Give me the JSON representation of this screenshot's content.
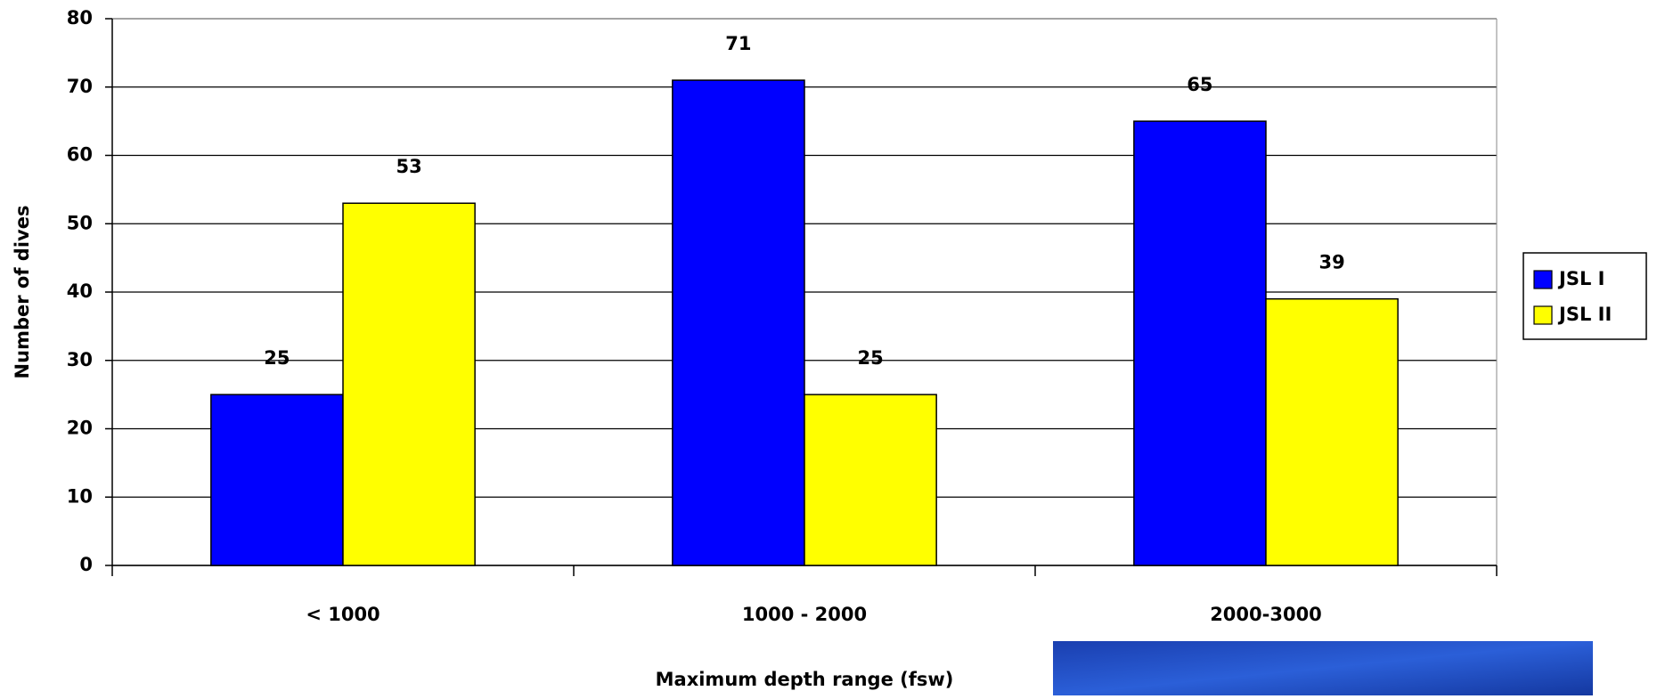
{
  "chart_data": {
    "type": "bar",
    "x_label": "Maximum depth range (fsw)",
    "y_label": "Number of dives",
    "categories": [
      "< 1000",
      "1000 - 2000",
      "2000-3000"
    ],
    "series": [
      {
        "name": "JSL I",
        "color": "#0000ff",
        "values": [
          25,
          71,
          65
        ]
      },
      {
        "name": "JSL II",
        "color": "#ffff00",
        "values": [
          53,
          25,
          39
        ]
      }
    ],
    "ylim": [
      0,
      80
    ],
    "yticks": [
      0,
      10,
      20,
      30,
      40,
      50,
      60,
      70,
      80
    ],
    "grid": true,
    "legend": "right"
  }
}
